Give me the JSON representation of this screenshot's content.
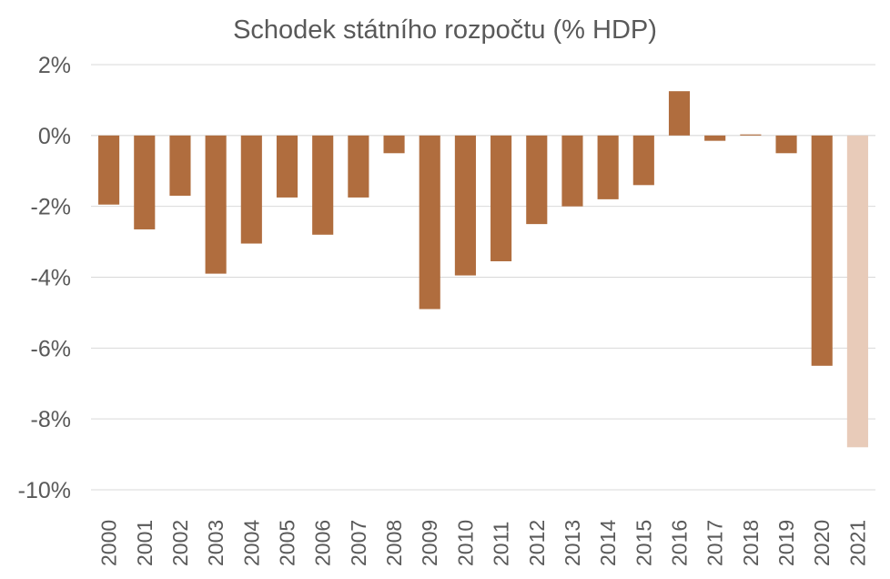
{
  "chart_data": {
    "type": "bar",
    "title": "Schodek státního rozpočtu (% HDP)",
    "xlabel": "",
    "ylabel": "",
    "ylim": [
      -10,
      2
    ],
    "yticks": [
      2,
      0,
      -2,
      -4,
      -6,
      -8,
      -10
    ],
    "ytick_labels": [
      "2%",
      "0%",
      "-2%",
      "-4%",
      "-6%",
      "-8%",
      "-10%"
    ],
    "categories": [
      "2000",
      "2001",
      "2002",
      "2003",
      "2004",
      "2005",
      "2006",
      "2007",
      "2008",
      "2009",
      "2010",
      "2011",
      "2012",
      "2013",
      "2014",
      "2015",
      "2016",
      "2017",
      "2018",
      "2019",
      "2020",
      "2021"
    ],
    "values": [
      -1.95,
      -2.65,
      -1.7,
      -3.9,
      -3.05,
      -1.75,
      -2.8,
      -1.75,
      -0.5,
      -4.9,
      -3.95,
      -3.55,
      -2.5,
      -2.0,
      -1.8,
      -1.4,
      1.25,
      -0.15,
      0.03,
      -0.5,
      -6.5,
      -8.8
    ],
    "colors": {
      "actual": "#b06d3e",
      "projected": "#e8cbb9"
    },
    "projected_categories": [
      "2021"
    ],
    "grid": true,
    "legend": "none"
  }
}
